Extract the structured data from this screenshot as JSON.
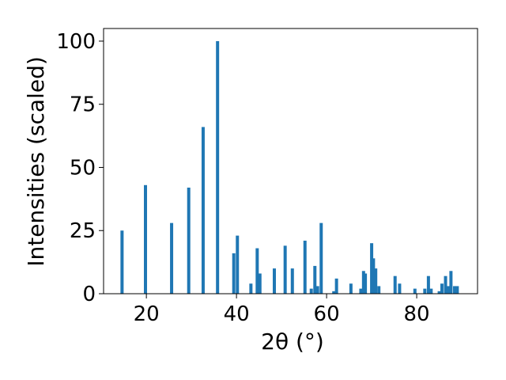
{
  "chart_data": {
    "type": "bar",
    "xlabel": "2θ (°)",
    "ylabel": "Intensities (scaled)",
    "xlim": [
      10.5,
      93.5
    ],
    "ylim": [
      0,
      105
    ],
    "xticks": [
      20,
      40,
      60,
      80
    ],
    "yticks": [
      0,
      25,
      50,
      75,
      100
    ],
    "grid": false,
    "bar_color": "#1f77b4",
    "bar_width": 0.7,
    "x": [
      14.6,
      19.8,
      25.6,
      29.4,
      32.6,
      35.8,
      39.4,
      40.2,
      43.2,
      44.6,
      45.2,
      48.4,
      50.8,
      52.4,
      55.2,
      56.6,
      57.4,
      58.0,
      58.8,
      61.6,
      62.2,
      65.4,
      67.6,
      68.2,
      68.6,
      70.0,
      70.4,
      70.9,
      71.6,
      75.2,
      76.2,
      79.6,
      81.8,
      82.6,
      83.2,
      85.0,
      85.6,
      86.4,
      87.0,
      87.6,
      88.4,
      89.0
    ],
    "values": [
      25,
      43,
      28,
      42,
      66,
      100,
      16,
      23,
      4,
      18,
      8,
      10,
      19,
      10,
      21,
      2,
      11,
      3,
      28,
      1,
      6,
      4,
      2,
      9,
      8,
      20,
      14,
      10,
      3,
      7,
      4,
      2,
      2,
      7,
      2,
      1,
      4,
      7,
      3,
      9,
      3,
      3
    ]
  }
}
